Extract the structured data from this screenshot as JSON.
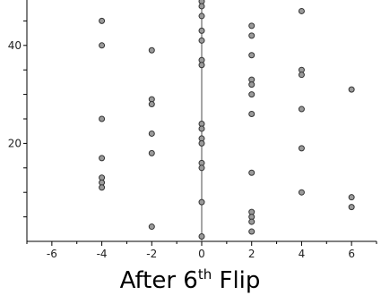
{
  "chart_data": {
    "type": "scatter",
    "title": {
      "pre": "After 6",
      "sup": "th",
      "post": " Flip"
    },
    "xlabel": "",
    "ylabel": "",
    "xlim": [
      -7,
      7
    ],
    "ylim": [
      0,
      50
    ],
    "x_ticks": [
      -6,
      -4,
      -2,
      0,
      2,
      4,
      6
    ],
    "y_ticks": [
      20,
      40
    ],
    "grid": false,
    "marker_color": "#9a9a9a",
    "marker_edge": "#333333",
    "axis_color": "#888888",
    "points": [
      {
        "x": -4,
        "y": 50
      },
      {
        "x": -4,
        "y": 45
      },
      {
        "x": -4,
        "y": 40
      },
      {
        "x": -4,
        "y": 25
      },
      {
        "x": -4,
        "y": 17
      },
      {
        "x": -4,
        "y": 13
      },
      {
        "x": -4,
        "y": 12
      },
      {
        "x": -4,
        "y": 11
      },
      {
        "x": -2,
        "y": 39
      },
      {
        "x": -2,
        "y": 29
      },
      {
        "x": -2,
        "y": 28
      },
      {
        "x": -2,
        "y": 22
      },
      {
        "x": -2,
        "y": 18
      },
      {
        "x": -2,
        "y": 3
      },
      {
        "x": 0,
        "y": 49
      },
      {
        "x": 0,
        "y": 48
      },
      {
        "x": 0,
        "y": 46
      },
      {
        "x": 0,
        "y": 43
      },
      {
        "x": 0,
        "y": 41
      },
      {
        "x": 0,
        "y": 37
      },
      {
        "x": 0,
        "y": 36
      },
      {
        "x": 0,
        "y": 24
      },
      {
        "x": 0,
        "y": 23
      },
      {
        "x": 0,
        "y": 21
      },
      {
        "x": 0,
        "y": 20
      },
      {
        "x": 0,
        "y": 16
      },
      {
        "x": 0,
        "y": 15
      },
      {
        "x": 0,
        "y": 8
      },
      {
        "x": 0,
        "y": 1
      },
      {
        "x": 2,
        "y": 44
      },
      {
        "x": 2,
        "y": 42
      },
      {
        "x": 2,
        "y": 38
      },
      {
        "x": 2,
        "y": 33
      },
      {
        "x": 2,
        "y": 32
      },
      {
        "x": 2,
        "y": 30
      },
      {
        "x": 2,
        "y": 26
      },
      {
        "x": 2,
        "y": 14
      },
      {
        "x": 2,
        "y": 6
      },
      {
        "x": 2,
        "y": 5
      },
      {
        "x": 2,
        "y": 4
      },
      {
        "x": 2,
        "y": 2
      },
      {
        "x": 4,
        "y": 47
      },
      {
        "x": 4,
        "y": 35
      },
      {
        "x": 4,
        "y": 34
      },
      {
        "x": 4,
        "y": 27
      },
      {
        "x": 4,
        "y": 19
      },
      {
        "x": 4,
        "y": 10
      },
      {
        "x": 6,
        "y": 31
      },
      {
        "x": 6,
        "y": 9
      },
      {
        "x": 6,
        "y": 7
      }
    ]
  }
}
